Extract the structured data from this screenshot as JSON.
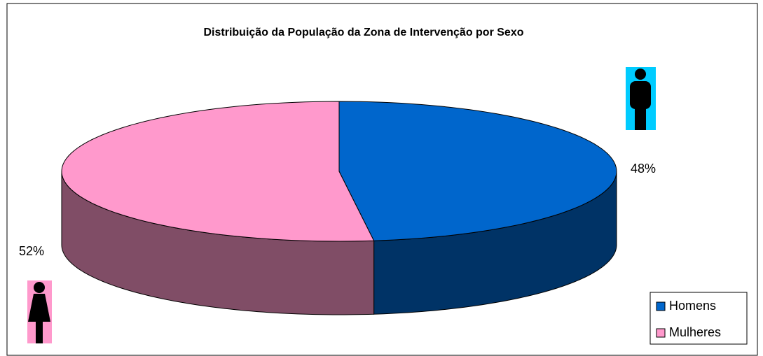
{
  "chart_data": {
    "type": "pie3d",
    "title": "Distribuição da População da Zona de Intervenção por Sexo",
    "categories": [
      "Homens",
      "Mulheres"
    ],
    "values": [
      48,
      52
    ],
    "value_labels": [
      "48%",
      "52%"
    ],
    "colors": [
      "#0066cc",
      "#ff99cc"
    ],
    "legend": "lower right"
  }
}
